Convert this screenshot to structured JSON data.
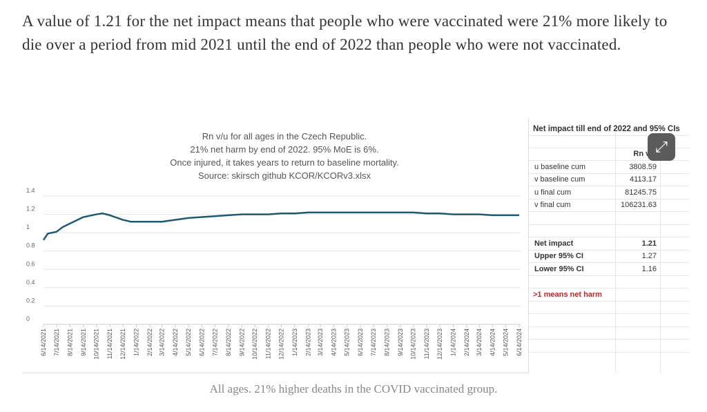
{
  "article": {
    "paragraph": "A value of 1.21 for the net impact means that people who were vaccinated were 21% more likely to die over a period from mid 2021 until the end of 2022 than people who were not vaccinated.",
    "caption": "All ages. 21% higher deaths in the COVID vaccinated group."
  },
  "chart_data": {
    "type": "line",
    "title_lines": [
      "Rn v/u for all ages in the Czech Republic.",
      "21% net harm by end of 2022. 95% MoE is 6%.",
      "Once injured, it takes years to return to baseline mortality.",
      "Source: skirsch github KCOR/KCORv3.xlsx"
    ],
    "ylim": [
      0,
      1.4
    ],
    "yticks": [
      "0",
      "0.2",
      "0.4",
      "0.6",
      "0.8",
      "1",
      "1.2",
      "1.4"
    ],
    "grid": true,
    "line_color": "#1e5a6e",
    "xticks": [
      "6/14/2021",
      "7/14/2021",
      "8/14/2021",
      "9/14/2021",
      "10/14/2021",
      "11/14/2021",
      "12/14/2021",
      "1/14/2022",
      "2/14/2022",
      "3/14/2022",
      "4/14/2022",
      "5/14/2022",
      "6/14/2022",
      "7/14/2022",
      "8/14/2022",
      "9/14/2022",
      "10/14/2022",
      "11/14/2022",
      "12/14/2022",
      "1/14/2023",
      "2/14/2023",
      "3/14/2023",
      "4/14/2023",
      "5/14/2023",
      "6/14/2023",
      "7/14/2023",
      "8/14/2023",
      "9/14/2023",
      "10/14/2023",
      "11/14/2023",
      "12/14/2023",
      "1/14/2024",
      "2/14/2024",
      "3/14/2024",
      "4/14/2024",
      "5/14/2024",
      "6/14/2024"
    ],
    "series": [
      {
        "points": [
          [
            "2021-06-14",
            0.92
          ],
          [
            "2021-06-24",
            0.99
          ],
          [
            "2021-07-14",
            1.01
          ],
          [
            "2021-07-28",
            1.06
          ],
          [
            "2021-08-14",
            1.1
          ],
          [
            "2021-09-14",
            1.17
          ],
          [
            "2021-10-14",
            1.2
          ],
          [
            "2021-10-28",
            1.21
          ],
          [
            "2021-11-14",
            1.19
          ],
          [
            "2021-12-14",
            1.14
          ],
          [
            "2022-01-01",
            1.12
          ],
          [
            "2022-01-14",
            1.12
          ],
          [
            "2022-02-14",
            1.12
          ],
          [
            "2022-03-14",
            1.12
          ],
          [
            "2022-04-14",
            1.14
          ],
          [
            "2022-05-14",
            1.16
          ],
          [
            "2022-06-14",
            1.17
          ],
          [
            "2022-07-14",
            1.18
          ],
          [
            "2022-08-14",
            1.19
          ],
          [
            "2022-09-14",
            1.2
          ],
          [
            "2022-10-14",
            1.2
          ],
          [
            "2022-11-14",
            1.2
          ],
          [
            "2022-12-14",
            1.21
          ],
          [
            "2023-01-14",
            1.21
          ],
          [
            "2023-02-14",
            1.22
          ],
          [
            "2023-03-14",
            1.22
          ],
          [
            "2023-04-14",
            1.22
          ],
          [
            "2023-05-14",
            1.22
          ],
          [
            "2023-06-14",
            1.22
          ],
          [
            "2023-07-14",
            1.22
          ],
          [
            "2023-08-14",
            1.22
          ],
          [
            "2023-09-14",
            1.22
          ],
          [
            "2023-10-14",
            1.22
          ],
          [
            "2023-11-14",
            1.21
          ],
          [
            "2023-12-14",
            1.21
          ],
          [
            "2024-01-14",
            1.2
          ],
          [
            "2024-02-14",
            1.2
          ],
          [
            "2024-03-14",
            1.2
          ],
          [
            "2024-04-14",
            1.19
          ],
          [
            "2024-05-14",
            1.19
          ],
          [
            "2024-06-14",
            1.19
          ]
        ]
      }
    ]
  },
  "table": {
    "title": "Net impact till end of 2022 and 95% CIs",
    "column_header": "Rn v/u",
    "rows": [
      {
        "label": "u baseline cum",
        "value": "3808.59"
      },
      {
        "label": "v baseline cum",
        "value": "4113.17"
      },
      {
        "label": "u final cum",
        "value": "81245.75"
      },
      {
        "label": "v final cum",
        "value": "106231.63"
      }
    ],
    "summary": [
      {
        "label": "Net impact",
        "value": "1.21"
      },
      {
        "label": "Upper 95% CI",
        "value": "1.27"
      },
      {
        "label": "Lower 95% CI",
        "value": "1.16"
      }
    ],
    "note": ">1 means net harm",
    "note_color": "#c0282d"
  },
  "expand_icon": "expand-arrows-icon"
}
